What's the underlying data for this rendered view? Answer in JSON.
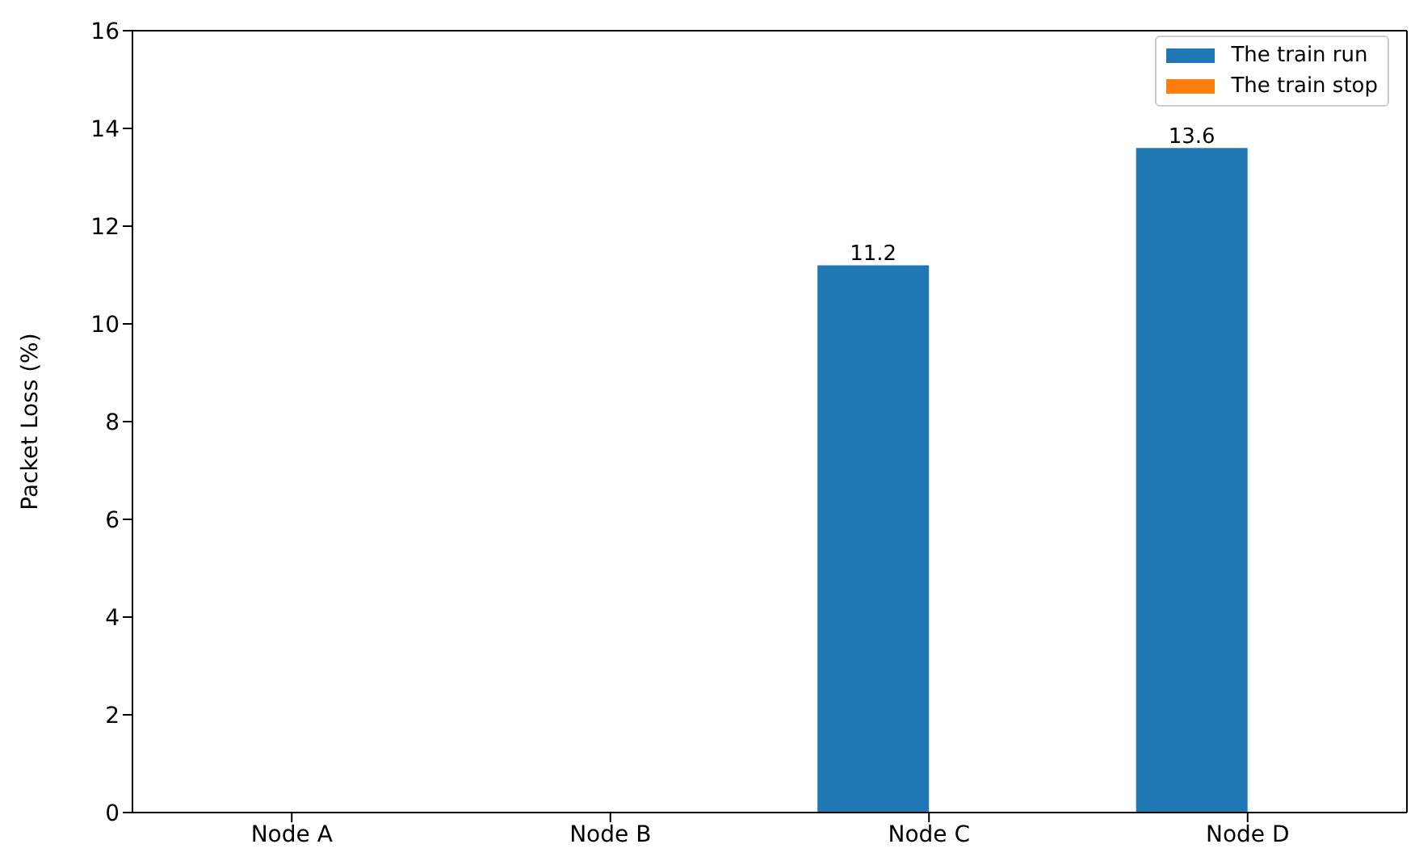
{
  "chart_data": {
    "type": "bar",
    "ylabel": "Packet Loss (%)",
    "categories": [
      "Node A",
      "Node B",
      "Node C",
      "Node D"
    ],
    "series": [
      {
        "name": "The train run",
        "color": "#1f77b4",
        "values": [
          0,
          0,
          11.2,
          13.6
        ],
        "value_labels": [
          null,
          null,
          "11.2",
          "13.6"
        ]
      },
      {
        "name": "The train stop",
        "color": "#ff7f0e",
        "values": [
          0,
          0,
          0,
          0
        ]
      }
    ],
    "ylim": [
      0,
      16
    ],
    "yticks": [
      0,
      2,
      4,
      6,
      8,
      10,
      12,
      14,
      16
    ],
    "grid": false,
    "legend": "top right"
  }
}
